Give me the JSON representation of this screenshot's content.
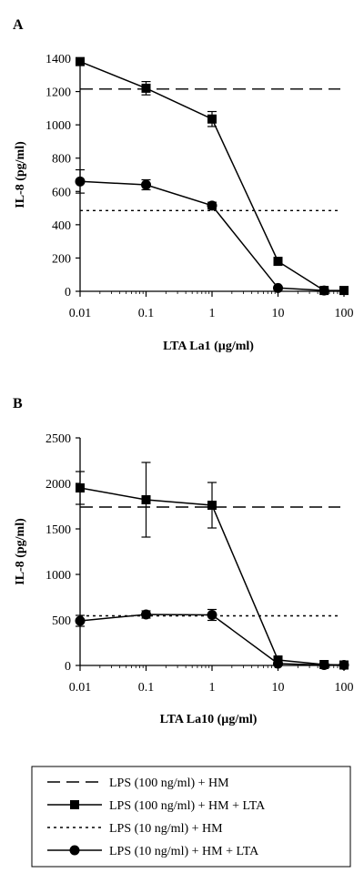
{
  "chart_data": [
    {
      "type": "line",
      "panel_label": "A",
      "title": "",
      "xlabel": "LTA La1 (µg/ml)",
      "ylabel": "IL-8 (pg/ml)",
      "x_scale": "log",
      "xlim": [
        0.01,
        100
      ],
      "ylim": [
        0,
        1400
      ],
      "x_ticks": [
        "0.01",
        "0.1",
        "1",
        "10",
        "100"
      ],
      "y_ticks": [
        "0",
        "200",
        "400",
        "600",
        "800",
        "1000",
        "1200",
        "1400"
      ],
      "grid": false,
      "series": [
        {
          "name": "LPS (100 ng/ml) + HM",
          "style": "dashed",
          "y_constant": 1215
        },
        {
          "name": "LPS (100 ng/ml) + HM + LTA",
          "style": "solid",
          "marker": "square",
          "x": [
            0.01,
            0.1,
            1,
            10,
            50,
            100
          ],
          "y": [
            1380,
            1220,
            1035,
            180,
            5,
            5
          ],
          "err": [
            20,
            40,
            45,
            20,
            0,
            0
          ]
        },
        {
          "name": "LPS (10 ng/ml) + HM",
          "style": "dotted",
          "y_constant": 485
        },
        {
          "name": "LPS (10 ng/ml) + HM + LTA",
          "style": "solid",
          "marker": "circle",
          "x": [
            0.01,
            0.1,
            1,
            10,
            50
          ],
          "y": [
            660,
            640,
            515,
            20,
            5
          ],
          "err": [
            70,
            30,
            20,
            0,
            0
          ]
        }
      ]
    },
    {
      "type": "line",
      "panel_label": "B",
      "title": "",
      "xlabel": "LTA La10 (µg/ml)",
      "ylabel": "IL-8 (pg/ml)",
      "x_scale": "log",
      "xlim": [
        0.01,
        100
      ],
      "ylim": [
        0,
        2500
      ],
      "x_ticks": [
        "0.01",
        "0.1",
        "1",
        "10",
        "100"
      ],
      "y_ticks": [
        "0",
        "500",
        "1000",
        "1500",
        "2000",
        "2500"
      ],
      "grid": false,
      "series": [
        {
          "name": "LPS (100 ng/ml) + HM",
          "style": "dashed",
          "y_constant": 1740
        },
        {
          "name": "LPS (100 ng/ml) + HM + LTA",
          "style": "solid",
          "marker": "square",
          "x": [
            0.01,
            0.1,
            1,
            10,
            50,
            100
          ],
          "y": [
            1950,
            1820,
            1760,
            60,
            10,
            5
          ],
          "err": [
            180,
            410,
            250,
            0,
            0,
            0
          ]
        },
        {
          "name": "LPS (10 ng/ml) + HM",
          "style": "dotted",
          "y_constant": 545
        },
        {
          "name": "LPS (10 ng/ml) + HM + LTA",
          "style": "solid",
          "marker": "circle",
          "x": [
            0.01,
            0.1,
            1,
            10,
            50,
            100
          ],
          "y": [
            490,
            560,
            555,
            20,
            5,
            5
          ],
          "err": [
            60,
            40,
            60,
            0,
            0,
            0
          ]
        }
      ]
    }
  ],
  "legend": {
    "placement": "bottom",
    "items": [
      {
        "label": "LPS (100 ng/ml) + HM",
        "style": "dashed",
        "marker": "none"
      },
      {
        "label": "LPS (100 ng/ml) + HM + LTA",
        "style": "solid",
        "marker": "square"
      },
      {
        "label": "LPS (10 ng/ml) + HM",
        "style": "dotted",
        "marker": "none"
      },
      {
        "label": "LPS (10 ng/ml) + HM + LTA",
        "style": "solid",
        "marker": "circle"
      }
    ]
  }
}
